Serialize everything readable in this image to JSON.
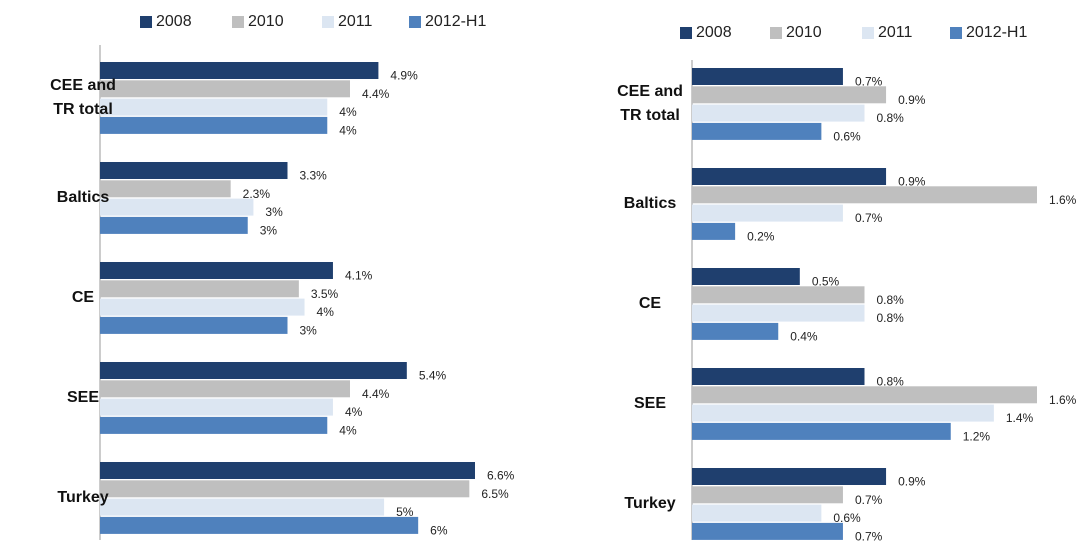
{
  "chart_data": [
    {
      "type": "bar",
      "orientation": "horizontal",
      "categories": [
        "CEE and TR total",
        "Baltics",
        "CE",
        "SEE",
        "Turkey"
      ],
      "series": [
        {
          "name": "2008",
          "color": "#1f3f6e",
          "values": [
            4.9,
            3.3,
            4.1,
            5.4,
            6.6
          ],
          "value_labels": [
            "4.9%",
            "3.3%",
            "4.1%",
            "5.4%",
            "6.6%"
          ]
        },
        {
          "name": "2010",
          "color": "#bfbfbf",
          "values": [
            4.4,
            2.3,
            3.5,
            4.4,
            6.5
          ],
          "value_labels": [
            "4.4%",
            "2.3%",
            "3.5%",
            "4.4%",
            "6.5%"
          ]
        },
        {
          "name": "2011",
          "color": "#dce6f2",
          "values": [
            4.0,
            2.7,
            3.6,
            4.1,
            5.0
          ],
          "value_labels": [
            "4%",
            "3%",
            "4%",
            "4%",
            "5%"
          ]
        },
        {
          "name": "2012-H1",
          "color": "#4f81bd",
          "values": [
            4.0,
            2.6,
            3.3,
            4.0,
            5.6
          ],
          "value_labels": [
            "4%",
            "3%",
            "3%",
            "4%",
            "6%"
          ]
        }
      ]
    },
    {
      "type": "bar",
      "orientation": "horizontal",
      "categories": [
        "CEE and TR total",
        "Baltics",
        "CE",
        "SEE",
        "Turkey"
      ],
      "series": [
        {
          "name": "2008",
          "color": "#1f3f6e",
          "values": [
            0.7,
            0.9,
            0.5,
            0.8,
            0.9
          ],
          "value_labels": [
            "0.7%",
            "0.9%",
            "0.5%",
            "0.8%",
            "0.9%"
          ]
        },
        {
          "name": "2010",
          "color": "#bfbfbf",
          "values": [
            0.9,
            1.6,
            0.8,
            1.6,
            0.7
          ],
          "value_labels": [
            "0.9%",
            "1.6%",
            "0.8%",
            "1.6%",
            "0.7%"
          ]
        },
        {
          "name": "2011",
          "color": "#dce6f2",
          "values": [
            0.8,
            0.7,
            0.8,
            1.4,
            0.6
          ],
          "value_labels": [
            "0.8%",
            "0.7%",
            "0.8%",
            "1.4%",
            "0.6%"
          ]
        },
        {
          "name": "2012-H1",
          "color": "#4f81bd",
          "values": [
            0.6,
            0.2,
            0.4,
            1.2,
            0.7
          ],
          "value_labels": [
            "0.6%",
            "0.2%",
            "0.4%",
            "1.2%",
            "0.7%"
          ]
        }
      ]
    }
  ]
}
